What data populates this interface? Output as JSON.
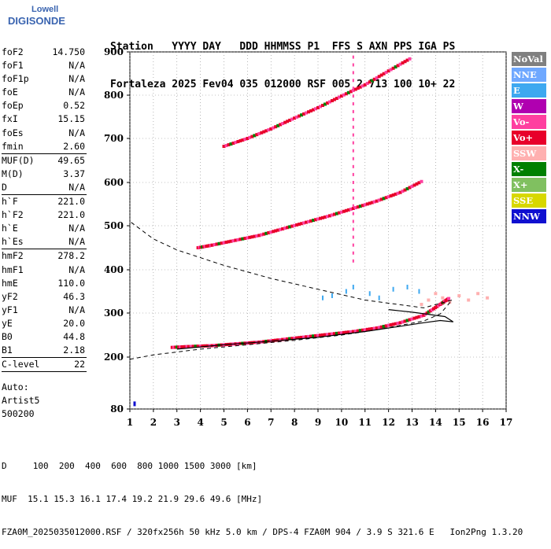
{
  "logo": {
    "line1": "Lowell",
    "line2": "DIGISONDE"
  },
  "header": {
    "line1": "Station   YYYY DAY   DDD HHMMSS P1  FFS S AXN PPS IGA PS",
    "line2": "Fortaleza 2025 Fev04 035 012000 RSF 005 2 713 100 10+ 22"
  },
  "params": [
    {
      "label": "foF2",
      "value": "14.750"
    },
    {
      "label": "foF1",
      "value": "N/A"
    },
    {
      "label": "foF1p",
      "value": "N/A"
    },
    {
      "label": "foE",
      "value": "N/A"
    },
    {
      "label": "foEp",
      "value": "0.52"
    },
    {
      "label": "fxI",
      "value": "15.15"
    },
    {
      "label": "foEs",
      "value": "N/A"
    },
    {
      "label": "fmin",
      "value": "2.60",
      "sep": true
    },
    {
      "label": "MUF(D)",
      "value": "49.65"
    },
    {
      "label": "M(D)",
      "value": "3.37"
    },
    {
      "label": "D",
      "value": "N/A",
      "sep": true
    },
    {
      "label": "h`F",
      "value": "221.0"
    },
    {
      "label": "h`F2",
      "value": "221.0"
    },
    {
      "label": "h`E",
      "value": "N/A"
    },
    {
      "label": "h`Es",
      "value": "N/A",
      "sep": true
    },
    {
      "label": "hmF2",
      "value": "278.2"
    },
    {
      "label": "hmF1",
      "value": "N/A"
    },
    {
      "label": "hmE",
      "value": "110.0"
    },
    {
      "label": "yF2",
      "value": "46.3"
    },
    {
      "label": "yF1",
      "value": "N/A"
    },
    {
      "label": "yE",
      "value": "20.0"
    },
    {
      "label": "B0",
      "value": "44.8"
    },
    {
      "label": "B1",
      "value": "2.18",
      "sep": true
    },
    {
      "label": "C-level",
      "value": "22",
      "sep": true
    }
  ],
  "auto": {
    "line1": "Auto:",
    "line2": "Artist5",
    "line3": "500200"
  },
  "legend": [
    {
      "label": "NoVal",
      "color": "#808080"
    },
    {
      "label": "NNE",
      "color": "#6fa8ff"
    },
    {
      "label": "E",
      "color": "#3ea8f0"
    },
    {
      "label": "W",
      "color": "#b000b0"
    },
    {
      "label": "Vo-",
      "color": "#ff3fa0"
    },
    {
      "label": "Vo+",
      "color": "#e8002a"
    },
    {
      "label": "SSW",
      "color": "#ffb0b0"
    },
    {
      "label": "X-",
      "color": "#008000"
    },
    {
      "label": "X+",
      "color": "#80c060"
    },
    {
      "label": "SSE",
      "color": "#d8d800"
    },
    {
      "label": "NNW",
      "color": "#1010d0"
    }
  ],
  "footer": {
    "line1": "D     100  200  400  600  800 1000 1500 3000 [km]",
    "line2": "MUF  15.1 15.3 16.1 17.4 19.2 21.9 29.6 49.6 [MHz]",
    "line3": "FZA0M_2025035012000.RSF / 320fx256h 50 kHz 5.0 km / DPS-4 FZA0M 904 / 3.9 S 321.6 E   Ion2Png 1.3.20"
  },
  "chart_data": {
    "type": "scatter",
    "title": "",
    "xlabel": "",
    "ylabel": "",
    "xlim": [
      1,
      17
    ],
    "ylim": [
      80,
      900
    ],
    "x_ticks": [
      1,
      2,
      3,
      4,
      5,
      6,
      7,
      8,
      9,
      10,
      11,
      12,
      13,
      14,
      15,
      16,
      17
    ],
    "y_ticks": [
      80,
      200,
      300,
      400,
      500,
      600,
      700,
      800,
      900
    ],
    "series": [
      {
        "name": "Vo+",
        "color": "#e8002a",
        "trace": "F-region first hop",
        "x": [
          2.8,
          3.5,
          4.5,
          5.5,
          6.5,
          7.5,
          8.5,
          9.5,
          10.5,
          11.5,
          12.5,
          13.5,
          14.2,
          14.6
        ],
        "y": [
          222,
          224,
          226,
          230,
          234,
          240,
          246,
          252,
          258,
          266,
          278,
          295,
          320,
          335
        ]
      },
      {
        "name": "Vo+",
        "color": "#e8002a",
        "trace": "second hop",
        "x": [
          3.9,
          4.5,
          5.5,
          6.5,
          7.5,
          8.5,
          9.5,
          10.5,
          11.5,
          12.5,
          13.5
        ],
        "y": [
          450,
          456,
          467,
          478,
          493,
          508,
          523,
          540,
          557,
          577,
          605
        ]
      },
      {
        "name": "Vo+",
        "color": "#e8002a",
        "trace": "third hop",
        "x": [
          5.0,
          6.0,
          7.0,
          8.0,
          9.0,
          10.0,
          11.0,
          12.0,
          13.0
        ],
        "y": [
          682,
          700,
          722,
          747,
          771,
          798,
          824,
          856,
          887
        ]
      }
    ],
    "profile_solid": {
      "x": [
        3.0,
        5.0,
        7.0,
        9.0,
        11.0,
        12.5,
        13.5,
        14.2,
        14.75,
        14.4,
        13.0,
        12.0
      ],
      "y": [
        218,
        228,
        236,
        245,
        258,
        270,
        278,
        283,
        280,
        292,
        302,
        308
      ]
    },
    "profile_dashed": {
      "x": [
        1.0,
        2.0,
        4.0,
        6.0,
        8.0,
        10.0,
        11.5,
        12.5,
        13.5,
        14.2,
        14.7,
        13.5,
        11.0,
        9.0,
        7.0,
        5.0,
        3.0,
        2.0,
        1.0
      ],
      "y": [
        195,
        205,
        218,
        228,
        238,
        250,
        262,
        272,
        282,
        298,
        330,
        312,
        330,
        355,
        380,
        410,
        445,
        470,
        510
      ]
    }
  }
}
